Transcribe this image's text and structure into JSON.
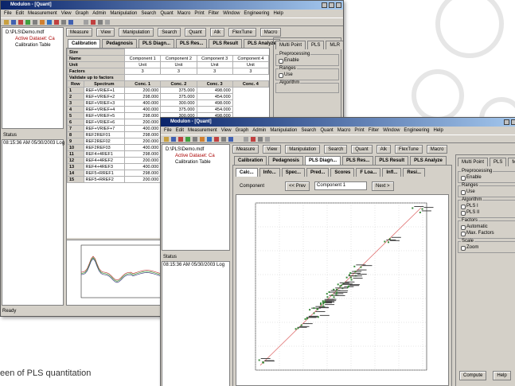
{
  "back_window": {
    "title": "Modulon - [Quant]",
    "menu": [
      "File",
      "Edit",
      "Measurement",
      "View",
      "Graph",
      "Admin",
      "Manipulation",
      "Search",
      "Quant",
      "Macro",
      "Print",
      "Filter",
      "Window",
      "Engineering",
      "Help"
    ],
    "tree": [
      "D:\\PLS\\Demo.mdf",
      "Active Dataset: Ca",
      "Calibration Table"
    ],
    "tools": [
      "Measure",
      "View",
      "Manipulation",
      "Search",
      "Quant",
      "Alk",
      "FlexTune",
      "Macro"
    ],
    "tabs": [
      "Calibration",
      "Pedagnosis",
      "PLS Diagn...",
      "PLS Res...",
      "PLS Result",
      "PLS Analyze"
    ],
    "table": {
      "header_rows": [
        {
          "label": "Size"
        },
        {
          "label": "Name",
          "cells": [
            "Component 1",
            "Component 2",
            "Component 3",
            "Component 4"
          ]
        },
        {
          "label": "Unit",
          "cells": [
            "Unit",
            "Unit",
            "Unit",
            "Unit"
          ]
        },
        {
          "label": "Factors",
          "cells": [
            "3",
            "3",
            "3",
            "3"
          ]
        },
        {
          "label": "Validate up to factors"
        }
      ],
      "columns": [
        "Row",
        "Spectrum",
        "Conc. 1",
        "Conc. 2",
        "Conc. 3",
        "Conc. 4"
      ],
      "rows": [
        [
          "1",
          "REF+VRIEF+1",
          "200.000",
          "375.000",
          "498.000"
        ],
        [
          "2",
          "REF+VRIEF+2",
          "298.000",
          "375.000",
          "454.000"
        ],
        [
          "3",
          "REF+VRIEF+3",
          "400.000",
          "300.000",
          "498.000"
        ],
        [
          "4",
          "REF+VRIEF+4",
          "400.000",
          "375.000",
          "454.000"
        ],
        [
          "5",
          "REF+VRIEF+5",
          "298.000",
          "300.000",
          "498.000"
        ],
        [
          "6",
          "REF+VRIEF+6",
          "200.000",
          "300.000",
          "454.000"
        ],
        [
          "7",
          "REF+VRIEF+7",
          "400.000",
          "375.000",
          "498.000"
        ],
        [
          "8",
          "REF2REF01",
          "298.000",
          "300.000",
          "454.000"
        ],
        [
          "9",
          "REF2REF02",
          "200.000",
          "375.000",
          "498.000"
        ],
        [
          "10",
          "REF2REF03",
          "400.000",
          "300.000",
          "454.000"
        ],
        [
          "11",
          "REF4+4REF1",
          "298.000",
          "375.000",
          "498.000"
        ],
        [
          "12",
          "REF4+4REF2",
          "200.000",
          "300.000",
          "454.000"
        ],
        [
          "13",
          "REF4+4REF3",
          "400.000",
          "375.000",
          "498.000"
        ],
        [
          "14",
          "REF5+RREF1",
          "298.000",
          "300.000",
          "454.000"
        ],
        [
          "15",
          "REF5+RREF2",
          "200.000",
          "375.000",
          "498.000"
        ]
      ]
    },
    "panel_tabs": [
      "Multi Point",
      "PLS",
      "MLR"
    ],
    "options": [
      {
        "group": "Preprocessing",
        "items": [
          "Enable"
        ]
      },
      {
        "group": "Ranges",
        "items": [
          "Use"
        ]
      },
      {
        "group": "Algorithm"
      }
    ],
    "status_label": "Status",
    "status_text": "08:15:36 AM 05/30/2003 Log",
    "statusbar": "Ready"
  },
  "front_window": {
    "title": "Modulon - [Quant]",
    "menu": [
      "File",
      "Edit",
      "Measurement",
      "View",
      "Graph",
      "Admin",
      "Manipulation",
      "Search",
      "Quant",
      "Macro",
      "Print",
      "Filter",
      "Window",
      "Engineering",
      "Help"
    ],
    "tree": [
      "D:\\PLS\\Demo.mdf",
      "Active Dataset: Ca",
      "Calibration Table"
    ],
    "tools": [
      "Measure",
      "View",
      "Manipulation",
      "Search",
      "Quant",
      "Alk",
      "FlexTune",
      "Macro"
    ],
    "tabs": [
      "Calibration",
      "Pedagnosis",
      "PLS Diagn...",
      "PLS Res...",
      "PLS Result",
      "PLS Analyze"
    ],
    "subtabs": [
      "Calc...",
      "Info...",
      "Spec...",
      "Pred...",
      "Scores",
      "F Loa...",
      "Infl...",
      "Resi..."
    ],
    "component_label": "Component",
    "prev": "<< Prev",
    "component": "Component 1",
    "next": "Next >",
    "panel_tabs": [
      "Multi Point",
      "PLS",
      "MLR"
    ],
    "options": [
      {
        "group": "Preprocessing",
        "items": [
          "Enable"
        ]
      },
      {
        "group": "Ranges",
        "items": [
          "Use"
        ]
      },
      {
        "group": "Algorithm",
        "items": [
          "PLS I",
          "PLS II"
        ]
      },
      {
        "group": "Factors",
        "items": [
          "Automatic",
          "Max. Factors"
        ]
      },
      {
        "group": "Scale",
        "items": [
          "Zoom"
        ]
      }
    ],
    "buttons": [
      "Compute",
      "Help"
    ],
    "status_label": "Status",
    "status_text": "08:15:36 AM 05/30/2003 Log"
  },
  "caption": "een of PLS quantitation"
}
